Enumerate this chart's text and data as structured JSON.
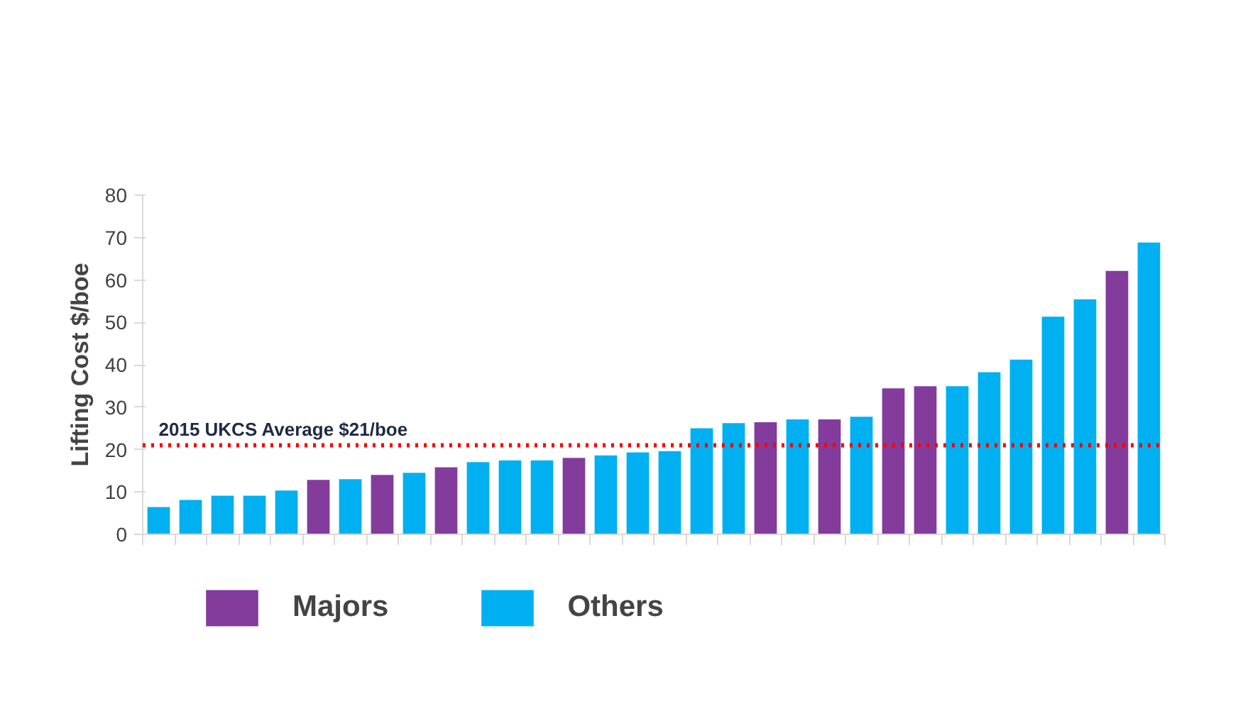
{
  "chart_data": {
    "type": "bar",
    "ylabel": "Lifting Cost $/boe",
    "categories": [
      null,
      null,
      null,
      null,
      null,
      null,
      null,
      null,
      null,
      null,
      null,
      null,
      null,
      null,
      null,
      null,
      null,
      null,
      null,
      null,
      null,
      null,
      null,
      null,
      null,
      null,
      null,
      null,
      null,
      null,
      null,
      null
    ],
    "series": [
      {
        "name": "Majors",
        "color": "#833c9b",
        "values": [
          null,
          null,
          null,
          null,
          null,
          13,
          null,
          14.2,
          null,
          16,
          null,
          null,
          null,
          18.2,
          null,
          null,
          null,
          null,
          null,
          26.6,
          null,
          27.3,
          null,
          34.6,
          35.1,
          null,
          null,
          null,
          null,
          null,
          62.3,
          null
        ]
      },
      {
        "name": "Others",
        "color": "#00b0f0",
        "values": [
          6.6,
          8.3,
          9.3,
          9.3,
          10.5,
          null,
          13.2,
          null,
          14.7,
          null,
          17.2,
          17.6,
          17.6,
          null,
          18.8,
          19.5,
          19.8,
          25.2,
          26.4,
          null,
          27.3,
          null,
          27.9,
          null,
          null,
          35.1,
          38.4,
          41.4,
          51.5,
          55.6,
          null,
          69.0
        ]
      }
    ],
    "ylim": [
      0,
      80
    ],
    "yticks": [
      0,
      10,
      20,
      30,
      40,
      50,
      60,
      70,
      80
    ],
    "ref_lines": [
      {
        "axis": "y",
        "value": 21,
        "label": "2015 UKCS Average $21/boe",
        "color": "#ff0000",
        "line_style": "dotted"
      }
    ],
    "grid": false,
    "legend": "bottom"
  }
}
